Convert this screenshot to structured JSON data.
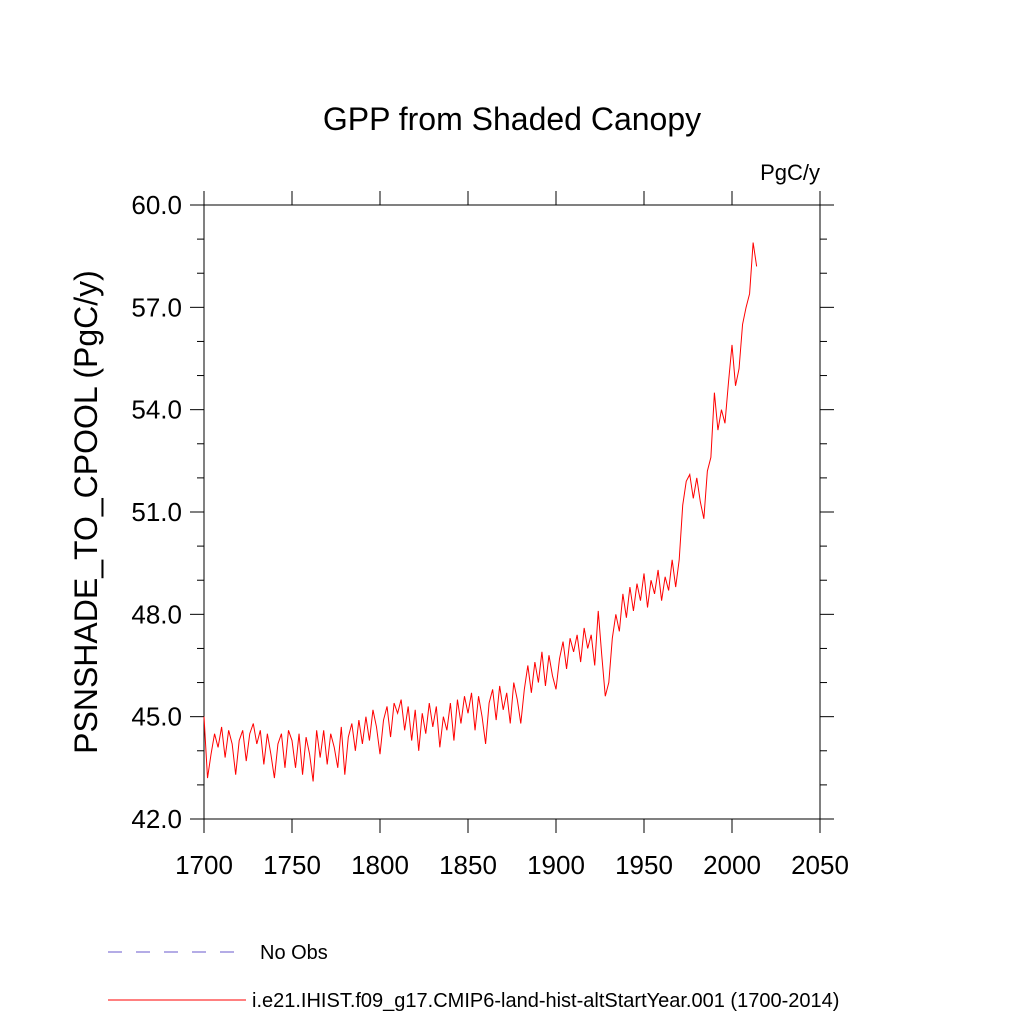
{
  "chart_data": {
    "type": "line",
    "title": "GPP from Shaded Canopy",
    "subtitle": "PgC/y",
    "ylabel": "PSNSHADE_TO_CPOOL  (PgC/y)",
    "xlim": [
      1700,
      2050
    ],
    "ylim": [
      42,
      60
    ],
    "xticks": [
      1700,
      1750,
      1800,
      1850,
      1900,
      1950,
      2000,
      2050
    ],
    "yticks": [
      {
        "value": 42,
        "label": "42.0"
      },
      {
        "value": 45,
        "label": "45.0"
      },
      {
        "value": 48,
        "label": "48.0"
      },
      {
        "value": 51,
        "label": "51.0"
      },
      {
        "value": 54,
        "label": "54.0"
      },
      {
        "value": 57,
        "label": "57.0"
      },
      {
        "value": 60,
        "label": "60.0"
      }
    ],
    "y_minor_ticks": [
      43,
      44,
      46,
      47,
      49,
      50,
      52,
      53,
      55,
      56,
      58,
      59
    ],
    "obs_label": "No Obs",
    "obs_color": "#6a5acd",
    "x": [
      1700,
      1702,
      1704,
      1706,
      1708,
      1710,
      1712,
      1714,
      1716,
      1718,
      1720,
      1722,
      1724,
      1726,
      1728,
      1730,
      1732,
      1734,
      1736,
      1738,
      1740,
      1742,
      1744,
      1746,
      1748,
      1750,
      1752,
      1754,
      1756,
      1758,
      1760,
      1762,
      1764,
      1766,
      1768,
      1770,
      1772,
      1774,
      1776,
      1778,
      1780,
      1782,
      1784,
      1786,
      1788,
      1790,
      1792,
      1794,
      1796,
      1798,
      1800,
      1802,
      1804,
      1806,
      1808,
      1810,
      1812,
      1814,
      1816,
      1818,
      1820,
      1822,
      1824,
      1826,
      1828,
      1830,
      1832,
      1834,
      1836,
      1838,
      1840,
      1842,
      1844,
      1846,
      1848,
      1850,
      1852,
      1854,
      1856,
      1858,
      1860,
      1862,
      1864,
      1866,
      1868,
      1870,
      1872,
      1874,
      1876,
      1878,
      1880,
      1882,
      1884,
      1886,
      1888,
      1890,
      1892,
      1894,
      1896,
      1898,
      1900,
      1902,
      1904,
      1906,
      1908,
      1910,
      1912,
      1914,
      1916,
      1918,
      1920,
      1922,
      1924,
      1926,
      1928,
      1930,
      1932,
      1934,
      1936,
      1938,
      1940,
      1942,
      1944,
      1946,
      1948,
      1950,
      1952,
      1954,
      1956,
      1958,
      1960,
      1962,
      1964,
      1966,
      1968,
      1970,
      1972,
      1974,
      1976,
      1978,
      1980,
      1982,
      1984,
      1986,
      1988,
      1990,
      1992,
      1994,
      1996,
      1998,
      2000,
      2002,
      2004,
      2006,
      2008,
      2010,
      2012,
      2014
    ],
    "series": [
      {
        "name": "i.e21.IHIST.f09_g17.CMIP6-land-hist-altStartYear.001 (1700-2014)",
        "color": "#ff0000",
        "values": [
          45.0,
          43.2,
          43.9,
          44.5,
          44.1,
          44.7,
          43.8,
          44.6,
          44.2,
          43.3,
          44.3,
          44.6,
          43.7,
          44.5,
          44.8,
          44.2,
          44.6,
          43.6,
          44.5,
          43.9,
          43.2,
          44.2,
          44.5,
          43.5,
          44.6,
          44.3,
          43.5,
          44.5,
          43.3,
          44.4,
          43.9,
          43.1,
          44.6,
          43.8,
          44.6,
          43.6,
          44.5,
          44.1,
          43.5,
          44.7,
          43.3,
          44.4,
          44.8,
          44.0,
          44.9,
          44.2,
          45.0,
          44.3,
          45.2,
          44.7,
          43.9,
          44.9,
          45.3,
          44.4,
          45.4,
          45.1,
          45.5,
          44.6,
          45.3,
          44.3,
          45.2,
          44.0,
          45.1,
          44.5,
          45.4,
          44.7,
          45.3,
          44.1,
          45.0,
          44.6,
          45.4,
          44.3,
          45.5,
          44.8,
          45.6,
          45.1,
          45.7,
          44.6,
          45.6,
          45.0,
          44.2,
          45.4,
          45.8,
          44.9,
          45.9,
          45.2,
          45.7,
          44.8,
          46.0,
          45.5,
          44.8,
          45.8,
          46.5,
          45.7,
          46.6,
          46.0,
          46.9,
          45.9,
          46.8,
          46.2,
          45.8,
          46.7,
          47.2,
          46.4,
          47.3,
          46.9,
          47.4,
          46.6,
          47.6,
          47.0,
          47.4,
          46.5,
          48.1,
          46.8,
          45.6,
          46.0,
          47.3,
          48.0,
          47.5,
          48.6,
          47.9,
          48.8,
          48.1,
          48.9,
          48.4,
          49.2,
          48.2,
          49.0,
          48.6,
          49.3,
          48.4,
          49.1,
          48.7,
          49.6,
          48.8,
          49.6,
          51.2,
          51.9,
          52.1,
          51.4,
          52.0,
          51.3,
          50.8,
          52.2,
          52.6,
          54.5,
          53.4,
          54.0,
          53.6,
          54.8,
          55.9,
          54.7,
          55.2,
          56.5,
          57.0,
          57.4,
          58.9,
          58.2
        ]
      }
    ]
  }
}
